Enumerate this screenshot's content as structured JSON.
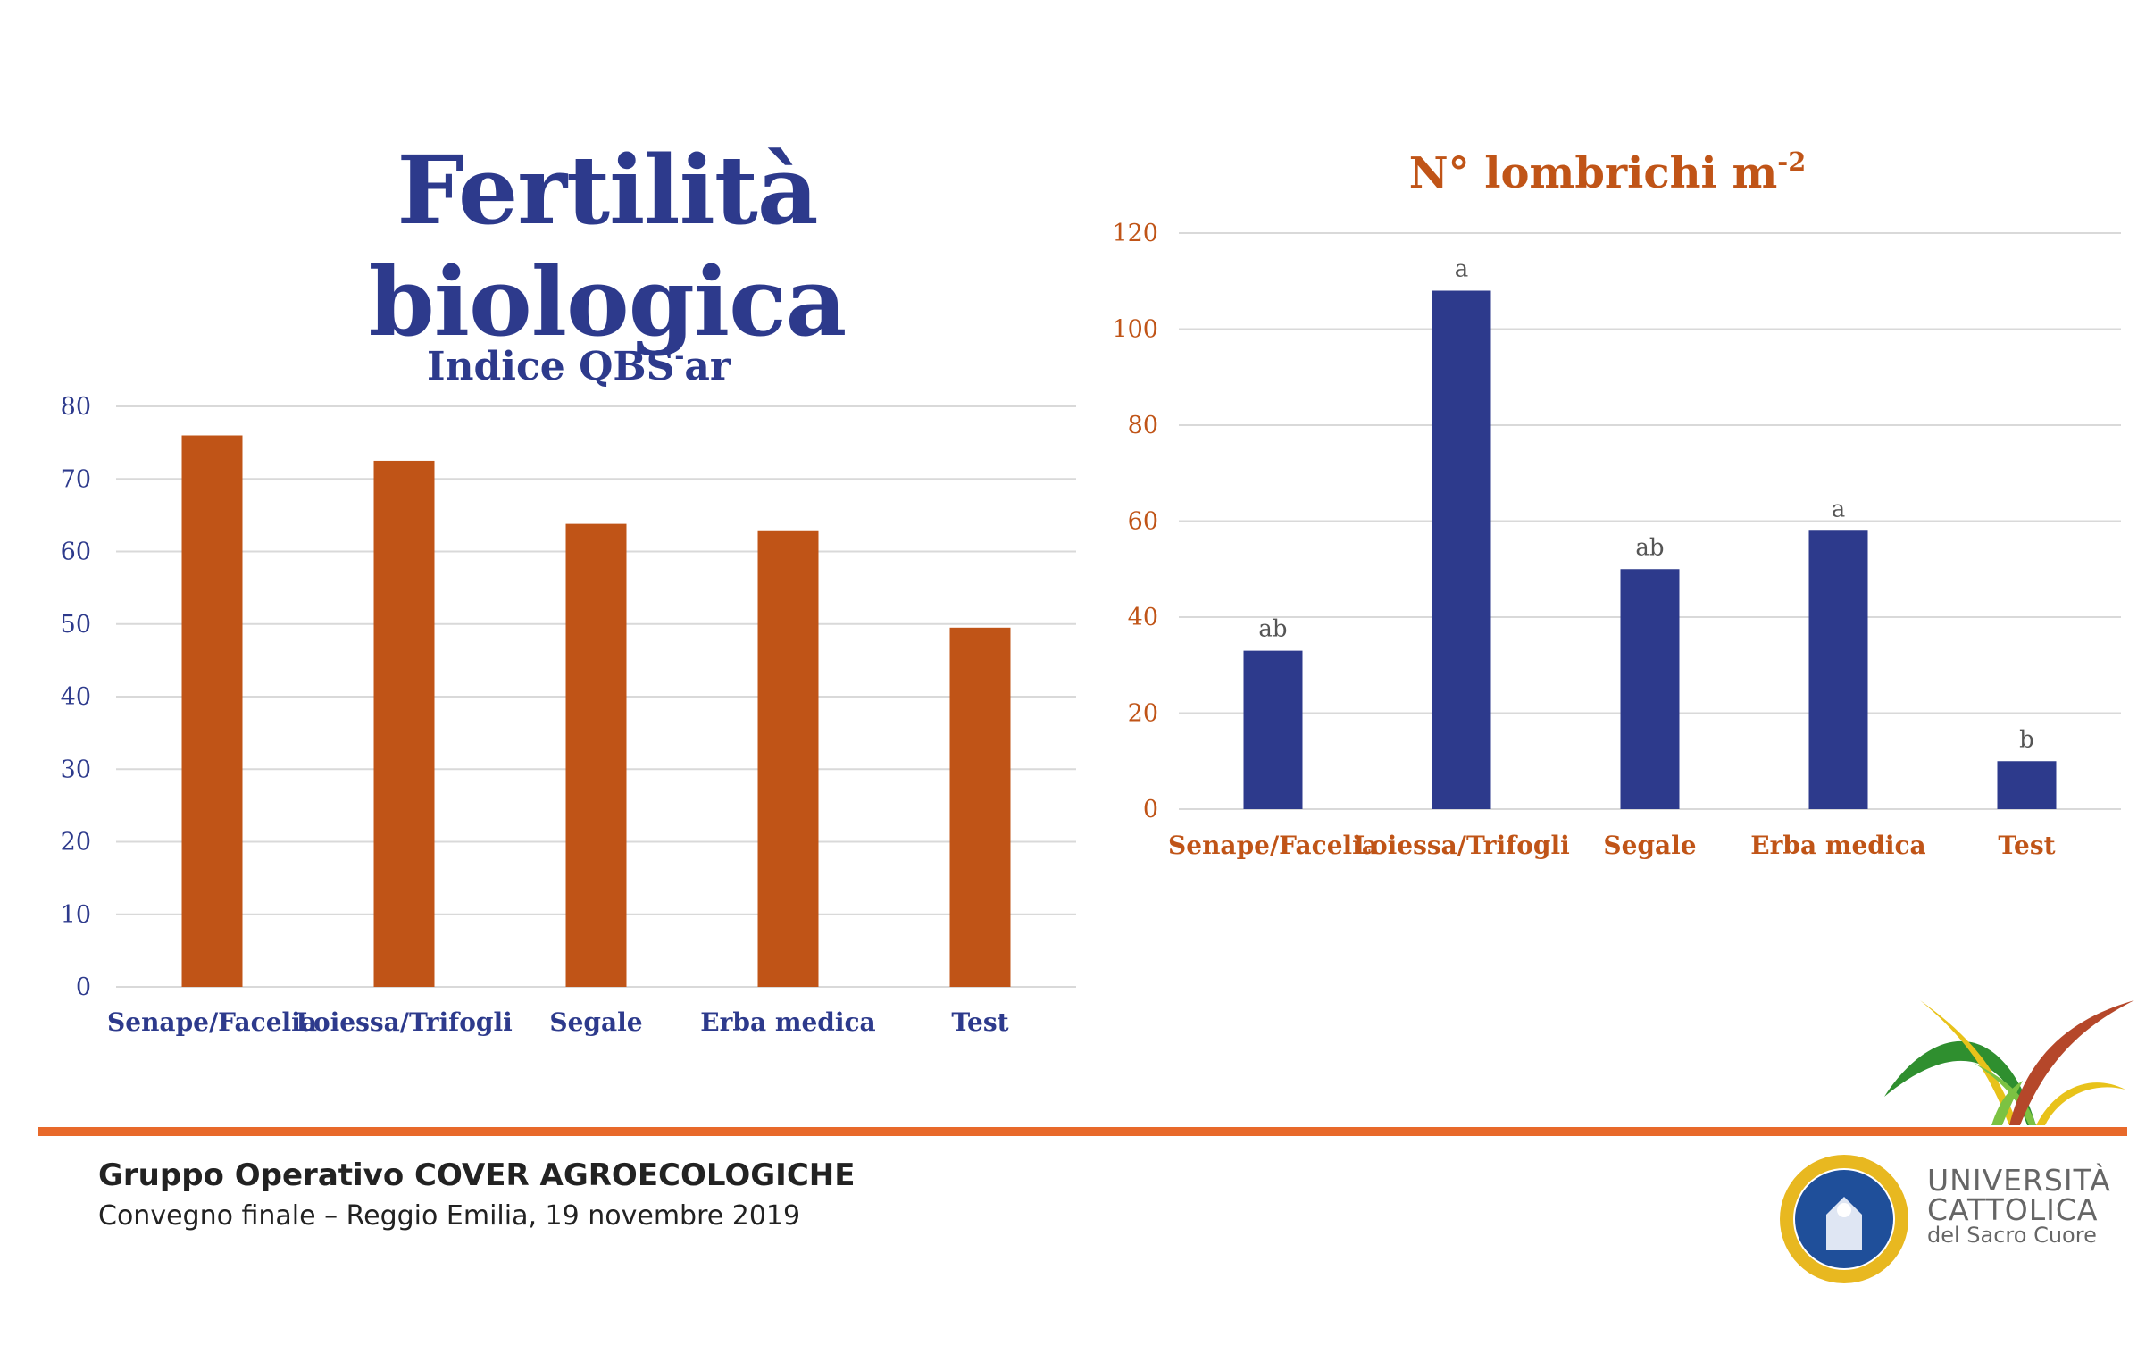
{
  "slide": {
    "title": "Fertilità biologica",
    "footer_title": "Gruppo Operativo COVER AGROECOLOGICHE",
    "footer_subtitle": "Convegno finale – Reggio Emilia, 19 novembre 2019",
    "university": {
      "line1": "UNIVERSITÀ",
      "line2": "CATTOLICA",
      "line3": "del Sacro Cuore"
    },
    "colors": {
      "title": "#2d3a8c",
      "accent": "#e8692a",
      "orange_bar": "#c05417",
      "blue_bar": "#2d3a8c"
    }
  },
  "chart_data": [
    {
      "type": "bar",
      "title": "Indice QBS-ar",
      "title_parts": [
        "Indice QBS",
        "-",
        "ar"
      ],
      "categories": [
        "Senape/Facelia",
        "Loiessa/Trifogli",
        "Segale",
        "Erba medica",
        "Test"
      ],
      "values": [
        76,
        72.5,
        63.8,
        62.8,
        49.5
      ],
      "ylim": [
        0,
        80
      ],
      "yticks": [
        0,
        10,
        20,
        30,
        40,
        50,
        60,
        70,
        80
      ],
      "grid": true,
      "bar_color": "#c05417",
      "label_color": "#2d3a8c"
    },
    {
      "type": "bar",
      "title": "N° lombrichi m-2",
      "title_parts": [
        "N° lombrichi m",
        "-2"
      ],
      "categories": [
        "Senape/Facelia",
        "Loiessa/Trifogli",
        "Segale",
        "Erba medica",
        "Test"
      ],
      "values": [
        33,
        108,
        50,
        58,
        10
      ],
      "annotations": [
        "ab",
        "a",
        "ab",
        "a",
        "b"
      ],
      "ylim": [
        0,
        120
      ],
      "yticks": [
        0,
        20,
        40,
        60,
        80,
        100,
        120
      ],
      "grid": true,
      "bar_color": "#2d3a8c",
      "label_color": "#c05417"
    }
  ]
}
